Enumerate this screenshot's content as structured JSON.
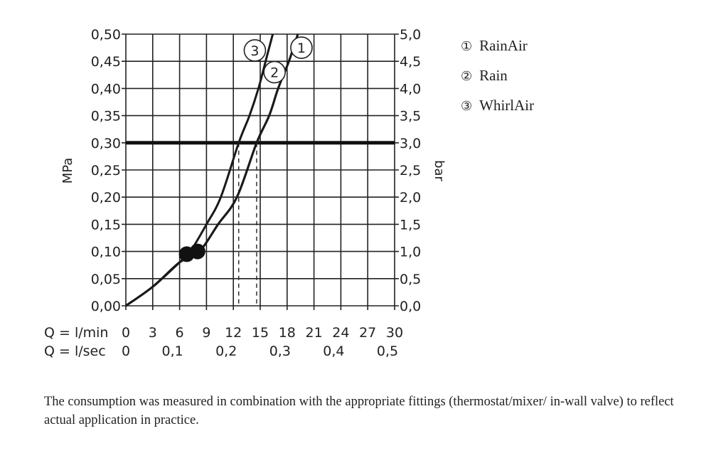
{
  "chart_data": {
    "type": "line",
    "x_axis": {
      "label_primary": "Q = l/min",
      "ticks_primary": [
        "0",
        "3",
        "6",
        "9",
        "12",
        "15",
        "18",
        "21",
        "24",
        "27",
        "30"
      ],
      "label_secondary": "Q = l/sec",
      "ticks_secondary": [
        "0",
        "0,1",
        "0,2",
        "0,3",
        "0,4",
        "0,5"
      ],
      "range": [
        0,
        30
      ]
    },
    "y_axis_left": {
      "label": "MPa",
      "ticks": [
        "0,00",
        "0,05",
        "0,10",
        "0,15",
        "0,20",
        "0,25",
        "0,30",
        "0,35",
        "0,40",
        "0,45",
        "0,50"
      ],
      "range": [
        0,
        0.5
      ]
    },
    "y_axis_right": {
      "label": "bar",
      "ticks": [
        "0,0",
        "0,5",
        "1,0",
        "1,5",
        "2,0",
        "2,5",
        "3,0",
        "3,5",
        "4,0",
        "4,5",
        "5,0"
      ],
      "range": [
        0,
        5
      ]
    },
    "grid": true,
    "reference_line": {
      "y": 0.3
    },
    "series": [
      {
        "id": "1",
        "name": "RainAir",
        "x": [
          0,
          3,
          6,
          8.2,
          10.3,
          12.4,
          14.6,
          16.0,
          17.0,
          18.2,
          19.2
        ],
        "y": [
          0,
          0.035,
          0.08,
          0.1,
          0.15,
          0.2,
          0.3,
          0.35,
          0.4,
          0.45,
          0.5
        ]
      },
      {
        "id": "2",
        "name": "Rain",
        "x": [
          0,
          3,
          6,
          8.2,
          10.3,
          12.4,
          14.6,
          16.0,
          17.0,
          18.2,
          19.2
        ],
        "y": [
          0,
          0.035,
          0.08,
          0.1,
          0.15,
          0.2,
          0.3,
          0.35,
          0.4,
          0.45,
          0.5
        ]
      },
      {
        "id": "3",
        "name": "WhirlAir",
        "x": [
          0,
          3,
          6,
          7.2,
          9.0,
          10.6,
          12.6,
          13.8,
          14.8,
          15.6,
          16.4
        ],
        "y": [
          0,
          0.035,
          0.08,
          0.1,
          0.15,
          0.2,
          0.3,
          0.35,
          0.4,
          0.45,
          0.5
        ]
      }
    ],
    "markers": [
      {
        "x": 6.8,
        "y": 0.095
      },
      {
        "x": 8.0,
        "y": 0.1
      }
    ],
    "dashed_drops": [
      12.6,
      14.6
    ],
    "series_labels": [
      {
        "id": "3",
        "x": 14.4,
        "y": 0.47
      },
      {
        "id": "1",
        "x": 19.6,
        "y": 0.475
      },
      {
        "id": "2",
        "x": 16.6,
        "y": 0.43
      }
    ]
  },
  "legend": [
    {
      "mark": "①",
      "label": "RainAir"
    },
    {
      "mark": "②",
      "label": "Rain"
    },
    {
      "mark": "③",
      "label": "WhirlAir"
    }
  ],
  "note": "The consumption was measured in combination with the appropriate fittings (thermostat/mixer/ in-wall valve) to reflect actual application in practice."
}
